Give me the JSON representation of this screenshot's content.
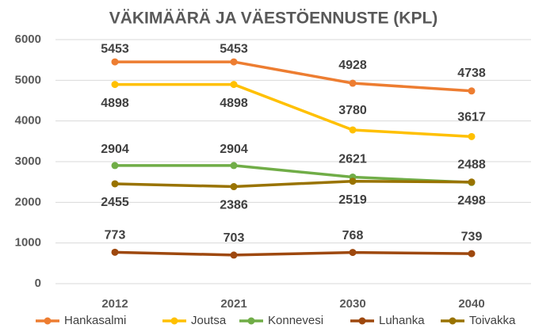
{
  "chart_data": {
    "type": "line",
    "title": "VÄKIMÄÄRÄ JA VÄESTÖENNUSTE (KPL)",
    "categories": [
      "2012",
      "2021",
      "2030",
      "2040"
    ],
    "series": [
      {
        "name": "Hankasalmi",
        "color": "#ED7D31",
        "values": [
          5453,
          5453,
          4928,
          4738
        ]
      },
      {
        "name": "Joutsa",
        "color": "#FFC000",
        "values": [
          4898,
          4898,
          3780,
          3617
        ]
      },
      {
        "name": "Konnevesi",
        "color": "#70AD47",
        "values": [
          2904,
          2904,
          2621,
          2488
        ]
      },
      {
        "name": "Luhanka",
        "color": "#9E480E",
        "values": [
          773,
          703,
          768,
          739
        ]
      },
      {
        "name": "Toivakka",
        "color": "#997300",
        "values": [
          2455,
          2386,
          2519,
          2498
        ]
      }
    ],
    "ylim": [
      0,
      6000
    ],
    "yticks": [
      0,
      1000,
      2000,
      3000,
      4000,
      5000,
      6000
    ],
    "grid": true,
    "legend": "bottom"
  }
}
